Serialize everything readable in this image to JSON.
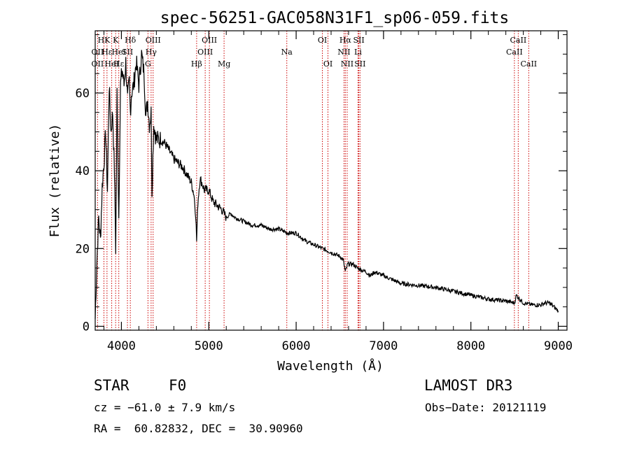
{
  "chart_data": {
    "type": "line",
    "title": "spec-56251-GAC058N31F1_sp06-059.fits",
    "xlabel": "Wavelength (Å)",
    "ylabel": "Flux (relative)",
    "xlim": [
      3700,
      9100
    ],
    "ylim": [
      -1,
      76
    ],
    "x_ticks": [
      4000,
      5000,
      6000,
      7000,
      8000,
      9000
    ],
    "x_tick_labels": [
      "4000",
      "5000",
      "6000",
      "7000",
      "8000",
      "9000"
    ],
    "y_ticks": [
      0,
      20,
      40,
      60
    ],
    "y_tick_labels": [
      "0",
      "20",
      "40",
      "60"
    ],
    "grid": false,
    "series": [
      {
        "name": "spectrum",
        "x": [
          3700,
          3720,
          3740,
          3760,
          3780,
          3800,
          3820,
          3840,
          3860,
          3880,
          3900,
          3920,
          3935,
          3950,
          3970,
          3990,
          4010,
          4030,
          4050,
          4070,
          4090,
          4102,
          4115,
          4140,
          4170,
          4200,
          4230,
          4260,
          4280,
          4300,
          4320,
          4340,
          4350,
          4370,
          4400,
          4450,
          4500,
          4550,
          4600,
          4650,
          4700,
          4750,
          4800,
          4830,
          4850,
          4861,
          4875,
          4900,
          4920,
          4950,
          5000,
          5050,
          5100,
          5150,
          5200,
          5250,
          5300,
          5400,
          5500,
          5600,
          5700,
          5800,
          5900,
          6000,
          6100,
          6200,
          6300,
          6400,
          6500,
          6540,
          6563,
          6590,
          6650,
          6700,
          6800,
          6850,
          6900,
          7000,
          7100,
          7200,
          7400,
          7600,
          7800,
          8000,
          8200,
          8400,
          8500,
          8520,
          8600,
          8700,
          8800,
          8850,
          8900,
          8950,
          9000
        ],
        "values": [
          2,
          17,
          28,
          22,
          36,
          42,
          50,
          35,
          62,
          50,
          55,
          40,
          20,
          60,
          28,
          62,
          66,
          62,
          68,
          58,
          63,
          55,
          60,
          62,
          68,
          62,
          70,
          65,
          54,
          58,
          52,
          55,
          35,
          52,
          48,
          48,
          47,
          45,
          43,
          42,
          41,
          39,
          37,
          34,
          29,
          22,
          32,
          38,
          37,
          35,
          35,
          32,
          31,
          30,
          28,
          29,
          28,
          27,
          26,
          26,
          25,
          25,
          24,
          24,
          22,
          21,
          20,
          19,
          18,
          17,
          14,
          16,
          16,
          15,
          14,
          13,
          14,
          13,
          12,
          11,
          10.5,
          10,
          9,
          8,
          7,
          6.5,
          6,
          8,
          6,
          5.5,
          5.5,
          6,
          6,
          5,
          4
        ]
      }
    ],
    "line_labels": [
      {
        "text": "HK",
        "x": 3800,
        "row": 1
      },
      {
        "text": "OII",
        "x": 3727,
        "row": 2
      },
      {
        "text": "OII",
        "x": 3727,
        "row": 3
      },
      {
        "text": "Hε",
        "x": 3835,
        "row": 2
      },
      {
        "text": "HeI",
        "x": 3889,
        "row": 3
      },
      {
        "text": "K",
        "x": 3934,
        "row": 1
      },
      {
        "text": "HeI",
        "x": 3970,
        "row": 2
      },
      {
        "text": "Hε",
        "x": 3970,
        "row": 3
      },
      {
        "text": "SII",
        "x": 4069,
        "row": 2
      },
      {
        "text": "Hδ",
        "x": 4102,
        "row": 1
      },
      {
        "text": "OIII",
        "x": 4363,
        "row": 1
      },
      {
        "text": "Hγ",
        "x": 4340,
        "row": 2
      },
      {
        "text": "G",
        "x": 4304,
        "row": 3
      },
      {
        "text": "Hβ",
        "x": 4861,
        "row": 3
      },
      {
        "text": "OIII",
        "x": 5007,
        "row": 1
      },
      {
        "text": "OIII",
        "x": 4959,
        "row": 2
      },
      {
        "text": "Mg",
        "x": 5175,
        "row": 3
      },
      {
        "text": "Na",
        "x": 5893,
        "row": 2
      },
      {
        "text": "OI",
        "x": 6300,
        "row": 1
      },
      {
        "text": "OI",
        "x": 6364,
        "row": 3
      },
      {
        "text": "Hα",
        "x": 6563,
        "row": 1
      },
      {
        "text": "SII",
        "x": 6717,
        "row": 1
      },
      {
        "text": "NII",
        "x": 6548,
        "row": 2
      },
      {
        "text": "Li",
        "x": 6708,
        "row": 2
      },
      {
        "text": "NII",
        "x": 6584,
        "row": 3
      },
      {
        "text": "SII",
        "x": 6731,
        "row": 3
      },
      {
        "text": "CaII",
        "x": 8542,
        "row": 1
      },
      {
        "text": "CaII",
        "x": 8498,
        "row": 2
      },
      {
        "text": "CaII",
        "x": 8662,
        "row": 3
      }
    ],
    "line_markers": [
      3727,
      3800,
      3835,
      3889,
      3934,
      3970,
      4069,
      4102,
      4304,
      4340,
      4363,
      4861,
      4959,
      5007,
      5175,
      5893,
      6300,
      6364,
      6548,
      6563,
      6584,
      6708,
      6717,
      6731,
      8498,
      8542,
      8662
    ],
    "marker_color": "#cc0000",
    "line_color": "#000000"
  },
  "info": {
    "object_type": "STAR",
    "subclass": "F0",
    "survey": "LAMOST DR3",
    "cz": "cz = −61.0 ± 7.9 km/s",
    "obs_date": "Obs−Date: 20121119",
    "coords": "RA =  60.82832, DEC =  30.90960"
  }
}
